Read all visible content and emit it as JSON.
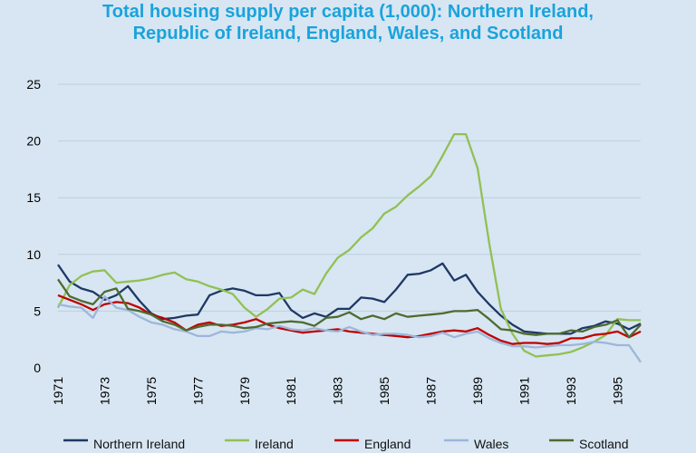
{
  "chart_data": {
    "type": "line",
    "title_line1": "Total housing supply per capita (1,000): Northern Ireland,",
    "title_line2": "Republic of Ireland, England, Wales, and Scotland",
    "xlabel": "",
    "ylabel": "",
    "xlim": [
      1971,
      1996
    ],
    "ylim": [
      0,
      25
    ],
    "y_ticks": [
      "0",
      "5",
      "10",
      "15",
      "20",
      "25"
    ],
    "x_ticks": [
      "1971",
      "1973",
      "1975",
      "1977",
      "1979",
      "1981",
      "1983",
      "1985",
      "1987",
      "1989",
      "1991",
      "1993",
      "1995"
    ],
    "x_tick_values": [
      1971,
      1973,
      1975,
      1977,
      1979,
      1981,
      1983,
      1985,
      1987,
      1989,
      1991,
      1993,
      1995
    ],
    "grid": "horizontal",
    "legend_position": "bottom",
    "x": [
      1971,
      1971.5,
      1972,
      1972.5,
      1973,
      1973.5,
      1974,
      1974.5,
      1975,
      1975.5,
      1976,
      1976.5,
      1977,
      1977.5,
      1978,
      1978.5,
      1979,
      1979.5,
      1980,
      1980.5,
      1981,
      1981.5,
      1982,
      1982.5,
      1983,
      1983.5,
      1984,
      1984.5,
      1985,
      1985.5,
      1986,
      1986.5,
      1987,
      1987.5,
      1988,
      1988.5,
      1989,
      1989.5,
      1990,
      1990.5,
      1991,
      1991.5,
      1992,
      1992.5,
      1993,
      1993.5,
      1994,
      1994.5,
      1995,
      1995.5,
      1996
    ],
    "series": [
      {
        "name": "Northern Ireland",
        "color": "#1f3864",
        "values": [
          9.1,
          7.6,
          7.0,
          6.7,
          6.0,
          6.4,
          7.2,
          5.9,
          4.8,
          4.3,
          4.4,
          4.6,
          4.7,
          6.4,
          6.8,
          7.0,
          6.8,
          6.4,
          6.4,
          6.6,
          5.1,
          4.4,
          4.8,
          4.5,
          5.2,
          5.2,
          6.2,
          6.1,
          5.8,
          6.9,
          8.2,
          8.3,
          8.6,
          9.2,
          7.7,
          8.2,
          6.7,
          5.6,
          4.6,
          3.8,
          3.2,
          3.1,
          3.0,
          3.0,
          3.0,
          3.5,
          3.7,
          4.1,
          3.9,
          3.4,
          3.9
        ]
      },
      {
        "name": "Ireland",
        "color": "#92c054",
        "values": [
          5.3,
          7.3,
          8.1,
          8.5,
          8.6,
          7.5,
          7.6,
          7.7,
          7.9,
          8.2,
          8.4,
          7.8,
          7.6,
          7.2,
          6.9,
          6.5,
          5.3,
          4.5,
          5.2,
          6.1,
          6.2,
          6.9,
          6.5,
          8.3,
          9.7,
          10.4,
          11.5,
          12.3,
          13.6,
          14.2,
          15.2,
          16.0,
          16.9,
          18.7,
          20.6,
          20.6,
          17.6,
          11.0,
          5.2,
          3.0,
          1.5,
          1.0,
          1.1,
          1.2,
          1.4,
          1.8,
          2.3,
          2.9,
          4.3,
          4.2,
          4.2
        ]
      },
      {
        "name": "England",
        "color": "#c00000",
        "values": [
          6.4,
          6.0,
          5.6,
          5.1,
          5.6,
          5.8,
          5.7,
          5.3,
          4.7,
          4.4,
          4.0,
          3.3,
          3.8,
          4.0,
          3.7,
          3.8,
          4.0,
          4.3,
          3.8,
          3.5,
          3.3,
          3.1,
          3.2,
          3.3,
          3.4,
          3.2,
          3.1,
          3.0,
          2.9,
          2.8,
          2.7,
          2.8,
          3.0,
          3.2,
          3.3,
          3.2,
          3.5,
          2.9,
          2.4,
          2.1,
          2.2,
          2.2,
          2.1,
          2.2,
          2.6,
          2.6,
          2.9,
          3.0,
          3.2,
          2.7,
          3.2
        ]
      },
      {
        "name": "Wales",
        "color": "#9db6d9",
        "values": [
          5.6,
          5.4,
          5.3,
          4.4,
          6.3,
          5.3,
          5.1,
          4.5,
          4.0,
          3.8,
          3.4,
          3.2,
          2.8,
          2.8,
          3.2,
          3.1,
          3.2,
          3.5,
          3.4,
          3.7,
          3.4,
          3.3,
          3.5,
          3.3,
          3.2,
          3.6,
          3.2,
          2.9,
          3.0,
          3.0,
          2.9,
          2.7,
          2.8,
          3.1,
          2.7,
          3.0,
          3.2,
          2.6,
          2.2,
          1.9,
          1.9,
          1.8,
          1.9,
          2.0,
          2.0,
          2.1,
          2.3,
          2.2,
          2.0,
          2.0,
          0.5
        ]
      },
      {
        "name": "Scotland",
        "color": "#4e6b30",
        "values": [
          7.8,
          6.3,
          5.9,
          5.6,
          6.7,
          7.0,
          5.2,
          5.0,
          4.7,
          4.1,
          3.8,
          3.3,
          3.6,
          3.8,
          3.8,
          3.7,
          3.5,
          3.6,
          3.9,
          4.0,
          4.1,
          4.0,
          3.7,
          4.4,
          4.5,
          4.9,
          4.3,
          4.6,
          4.3,
          4.8,
          4.5,
          4.6,
          4.7,
          4.8,
          5.0,
          5.0,
          5.1,
          4.3,
          3.4,
          3.3,
          3.0,
          2.9,
          3.0,
          3.0,
          3.3,
          3.2,
          3.6,
          3.8,
          4.2,
          2.7,
          3.8
        ]
      }
    ]
  }
}
